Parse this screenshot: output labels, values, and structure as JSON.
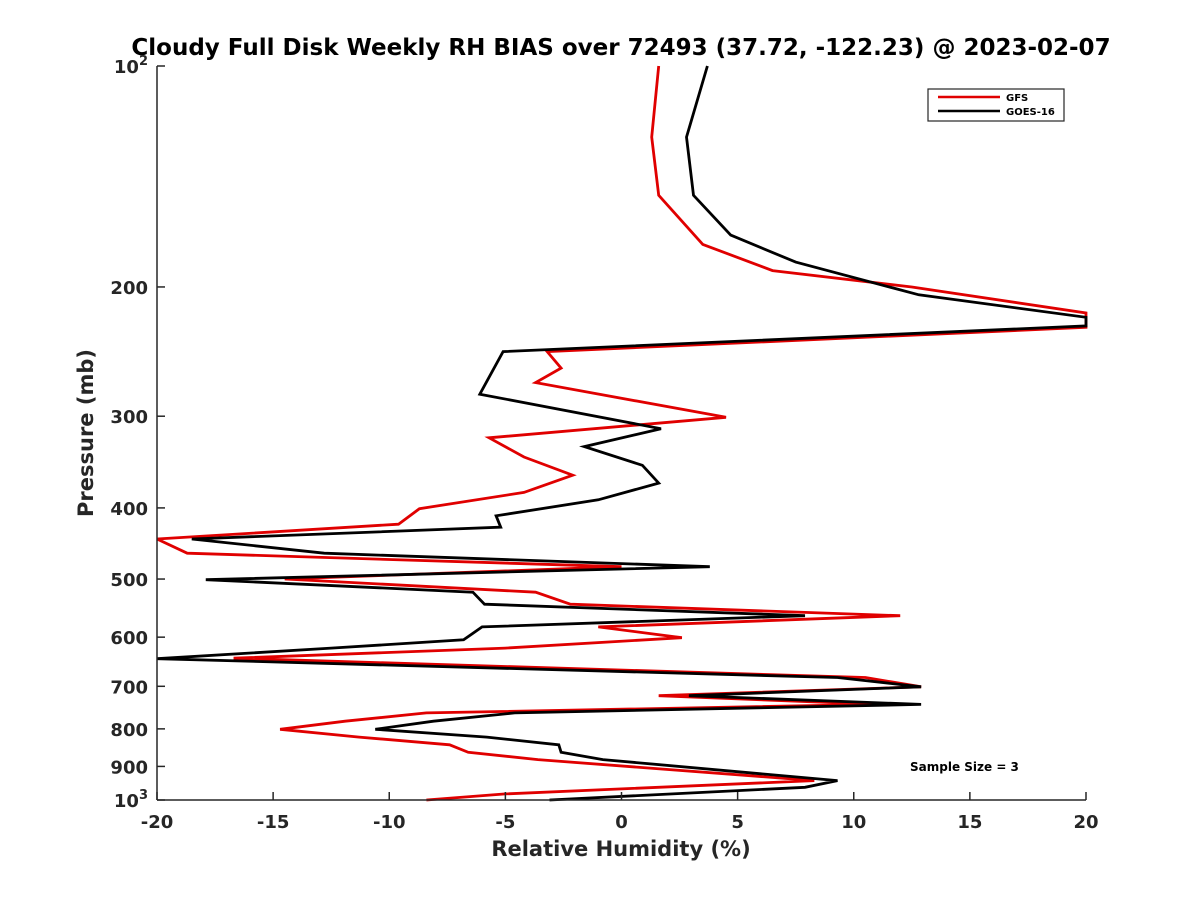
{
  "chart_data": {
    "type": "line",
    "title": "Cloudy Full Disk Weekly RH BIAS over 72493 (37.72, -122.23) @ 2023-02-07",
    "xlabel": "Relative Humidity (%)",
    "ylabel": "Pressure (mb)",
    "xlim": [
      -20,
      20
    ],
    "ylim": [
      100,
      1000
    ],
    "y_scale": "log",
    "y_reversed": true,
    "grid": false,
    "legend_position": "top-right",
    "x_ticks": [
      -20,
      -15,
      -10,
      -5,
      0,
      5,
      10,
      15,
      20
    ],
    "x_tick_labels": [
      "-20",
      "-15",
      "-10",
      "-5",
      "0",
      "5",
      "10",
      "15",
      "20"
    ],
    "y_ticks": [
      100,
      200,
      300,
      400,
      500,
      600,
      700,
      800,
      900,
      1000
    ],
    "y_tick_labels": [
      {
        "text": "10",
        "sup": "2"
      },
      {
        "text": "200",
        "sup": ""
      },
      {
        "text": "300",
        "sup": ""
      },
      {
        "text": "400",
        "sup": ""
      },
      {
        "text": "500",
        "sup": ""
      },
      {
        "text": "600",
        "sup": ""
      },
      {
        "text": "700",
        "sup": ""
      },
      {
        "text": "800",
        "sup": ""
      },
      {
        "text": "900",
        "sup": ""
      },
      {
        "text": "10",
        "sup": "3"
      }
    ],
    "series": [
      {
        "name": "GFS",
        "color": "#e00000",
        "points": [
          [
            1.6,
            100
          ],
          [
            1.3,
            125
          ],
          [
            1.6,
            150
          ],
          [
            3.5,
            175
          ],
          [
            6.5,
            190
          ],
          [
            12.5,
            200
          ],
          [
            20,
            217
          ],
          [
            20,
            227
          ],
          [
            -3.2,
            245
          ],
          [
            -2.6,
            258
          ],
          [
            -3.7,
            270
          ],
          [
            4.5,
            301
          ],
          [
            -5.7,
            321
          ],
          [
            -4.2,
            341
          ],
          [
            -2.1,
            361
          ],
          [
            -4.2,
            381
          ],
          [
            -8.7,
            401
          ],
          [
            -9.6,
            421
          ],
          [
            -20,
            441
          ],
          [
            -18.7,
            461
          ],
          [
            0,
            481
          ],
          [
            -14.5,
            500
          ],
          [
            -3.7,
            521
          ],
          [
            -2.2,
            541
          ],
          [
            12,
            561
          ],
          [
            -1,
            581
          ],
          [
            2.6,
            601
          ],
          [
            -5,
            621
          ],
          [
            -16.7,
            641
          ],
          [
            10.5,
            681
          ],
          [
            12.9,
            701
          ],
          [
            1.6,
            721
          ],
          [
            11,
            741
          ],
          [
            -8.4,
            761
          ],
          [
            -11.9,
            781
          ],
          [
            -14.7,
            801
          ],
          [
            -11.3,
            821
          ],
          [
            -7.4,
            841
          ],
          [
            -6.6,
            861
          ],
          [
            -3.6,
            881
          ],
          [
            8.3,
            941
          ],
          [
            -5,
            981
          ],
          [
            -8.4,
            1000
          ]
        ]
      },
      {
        "name": "GOES-16",
        "color": "#000000",
        "points": [
          [
            3.7,
            100
          ],
          [
            2.8,
            125
          ],
          [
            3.1,
            150
          ],
          [
            4.7,
            170
          ],
          [
            7.5,
            185
          ],
          [
            12.8,
            205
          ],
          [
            20,
            220
          ],
          [
            20,
            226
          ],
          [
            -5.1,
            245
          ],
          [
            -6.1,
            280
          ],
          [
            1.7,
            312
          ],
          [
            -1.6,
            330
          ],
          [
            0.9,
            350
          ],
          [
            1.6,
            370
          ],
          [
            -1,
            390
          ],
          [
            -5.4,
            410
          ],
          [
            -5.2,
            425
          ],
          [
            -18.5,
            441
          ],
          [
            -12.8,
            461
          ],
          [
            3.8,
            481
          ],
          [
            -17.9,
            501
          ],
          [
            -6.4,
            521
          ],
          [
            -5.9,
            541
          ],
          [
            7.9,
            561
          ],
          [
            -6,
            581
          ],
          [
            -6.8,
            605
          ],
          [
            -12.5,
            621
          ],
          [
            -20,
            642
          ],
          [
            9.3,
            681
          ],
          [
            12.9,
            701
          ],
          [
            2.9,
            721
          ],
          [
            12.9,
            741
          ],
          [
            -4.6,
            761
          ],
          [
            -8.1,
            781
          ],
          [
            -10.6,
            801
          ],
          [
            -5.8,
            821
          ],
          [
            -2.7,
            841
          ],
          [
            -2.6,
            861
          ],
          [
            -0.8,
            881
          ],
          [
            6,
            921
          ],
          [
            9.3,
            941
          ],
          [
            7.9,
            961
          ],
          [
            -3.1,
            1000
          ]
        ]
      }
    ],
    "annotation": "Sample Size = 3"
  }
}
